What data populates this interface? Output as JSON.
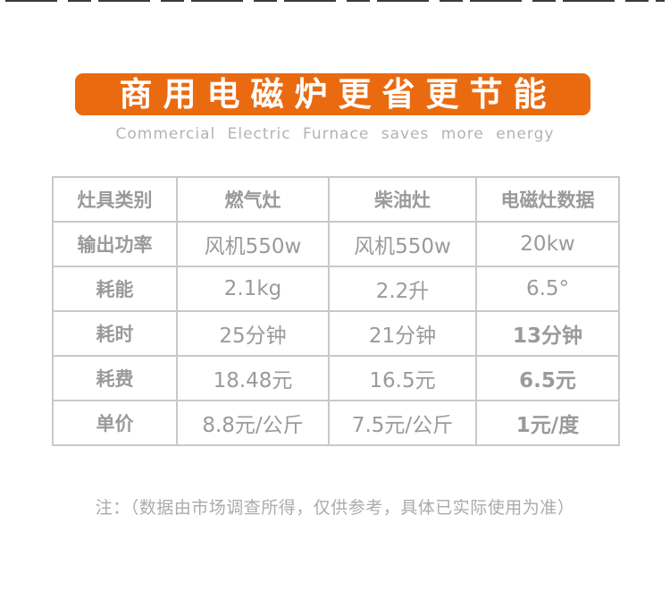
{
  "banner": {
    "title": "商用电磁炉更省更节能",
    "subtitle": "Commercial Electric Furnace saves more energy",
    "background_color": "#ea6a10",
    "title_color": "#ffffff",
    "subtitle_color": "#b3b3b3"
  },
  "table": {
    "columns": [
      "灶具类别",
      "燃气灶",
      "柴油灶",
      "电磁灶数据"
    ],
    "rows": [
      {
        "cells": [
          "输出功率",
          "风机550w",
          "风机550w",
          "20kw"
        ],
        "highlight_last": false
      },
      {
        "cells": [
          "耗能",
          "2.1kg",
          "2.2升",
          "6.5°"
        ],
        "highlight_last": false
      },
      {
        "cells": [
          "耗时",
          "25分钟",
          "21分钟",
          "13分钟"
        ],
        "highlight_last": true
      },
      {
        "cells": [
          "耗费",
          "18.48元",
          "16.5元",
          "6.5元"
        ],
        "highlight_last": true
      },
      {
        "cells": [
          "单价",
          "8.8元/公斤",
          "7.5元/公斤",
          "1元/度"
        ],
        "highlight_last": true
      }
    ],
    "text_color": "#9a9a9a",
    "highlight_color": "#f30000",
    "border_color": "#c9c9c9"
  },
  "note": {
    "text": "注：（数据由市场调查所得，仅供参考，具体已实际使用为准）"
  },
  "chart_data": {
    "type": "table",
    "title": "商用电磁炉更省更节能",
    "subtitle": "Commercial Electric Furnace saves more energy",
    "columns": [
      "灶具类别",
      "燃气灶",
      "柴油灶",
      "电磁灶数据"
    ],
    "rows": [
      [
        "输出功率",
        "风机550w",
        "风机550w",
        "20kw"
      ],
      [
        "耗能",
        "2.1kg",
        "2.2升",
        "6.5°"
      ],
      [
        "耗时",
        "25分钟",
        "21分钟",
        "13分钟"
      ],
      [
        "耗费",
        "18.48元",
        "16.5元",
        "6.5元"
      ],
      [
        "单价",
        "8.8元/公斤",
        "7.5元/公斤",
        "1元/度"
      ]
    ],
    "highlighted_cells": [
      "13分钟",
      "6.5元",
      "1元/度"
    ],
    "note": "注：（数据由市场调查所得，仅供参考，具体已实际使用为准）"
  }
}
